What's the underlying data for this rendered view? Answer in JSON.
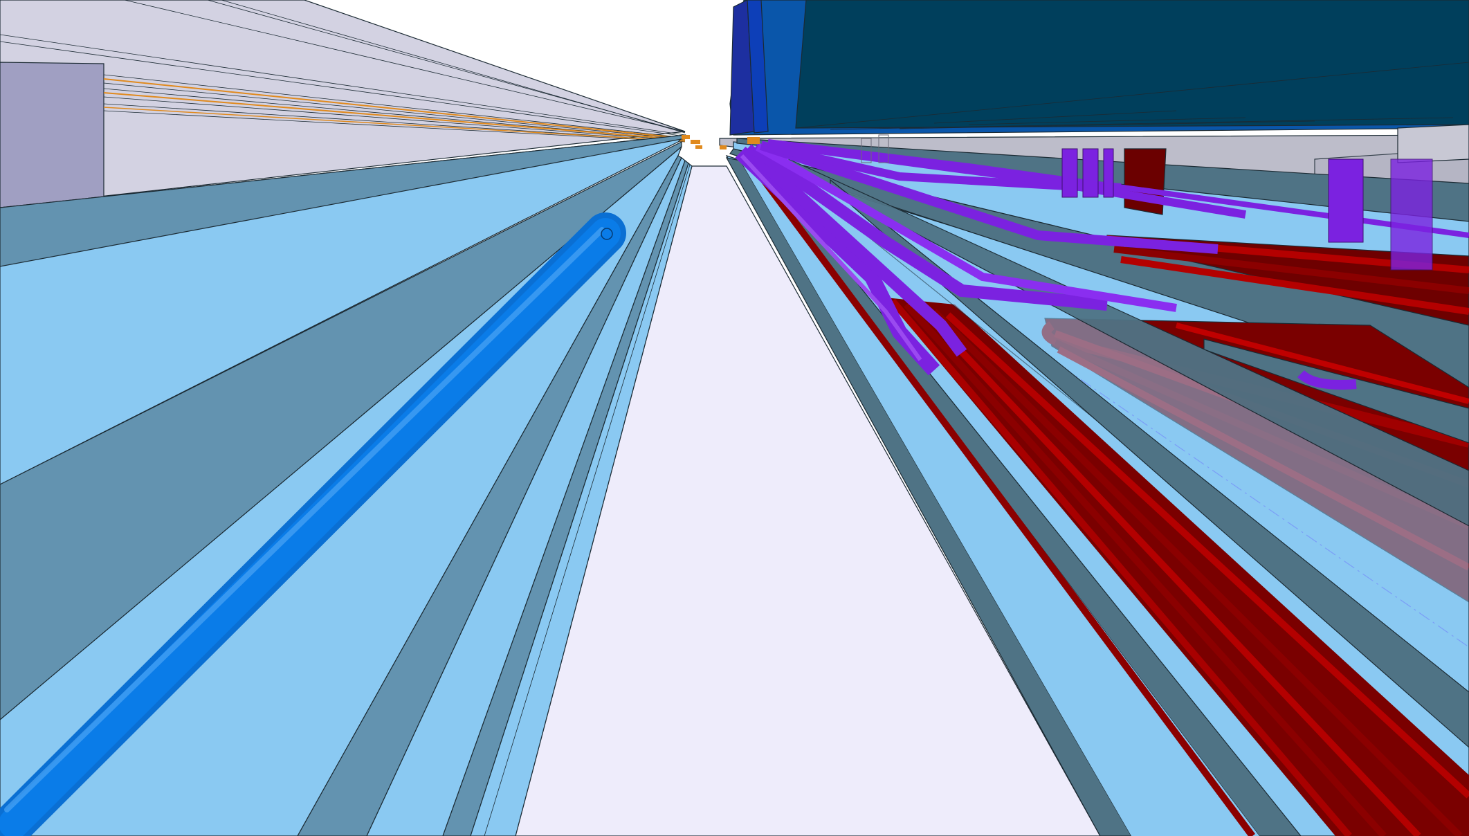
{
  "view": {
    "kind": "3d-model-viewport",
    "background": "#ffffff"
  },
  "colors": {
    "ceiling_light": "#d3d2e2",
    "ceiling_block": "#a09fc2",
    "floor": "#eeecfb",
    "tray_face": "#8ac9f2",
    "tray_side": "#6393b0",
    "tray_dark": "#4f7385",
    "pipe_blue": "#0a7ce8",
    "pipe_purple": "#7b22e0",
    "pipe_red": "#8b0000",
    "duct_teal": "#003f5c",
    "duct_blue": "#0a56aa",
    "wall_grey": "#bdbdca",
    "accent_orange": "#e08a1e"
  },
  "objects": [
    {
      "name": "ceiling-slab",
      "icon": "ceiling"
    },
    {
      "name": "floor-slab",
      "icon": "floor"
    },
    {
      "name": "cable-tray-left",
      "icon": "tray"
    },
    {
      "name": "cable-tray-right",
      "icon": "tray"
    },
    {
      "name": "blue-pipe",
      "icon": "pipe"
    },
    {
      "name": "purple-pipe-bundle",
      "icon": "pipe"
    },
    {
      "name": "red-pipe-bundle",
      "icon": "pipe"
    },
    {
      "name": "hvac-duct",
      "icon": "duct"
    }
  ]
}
